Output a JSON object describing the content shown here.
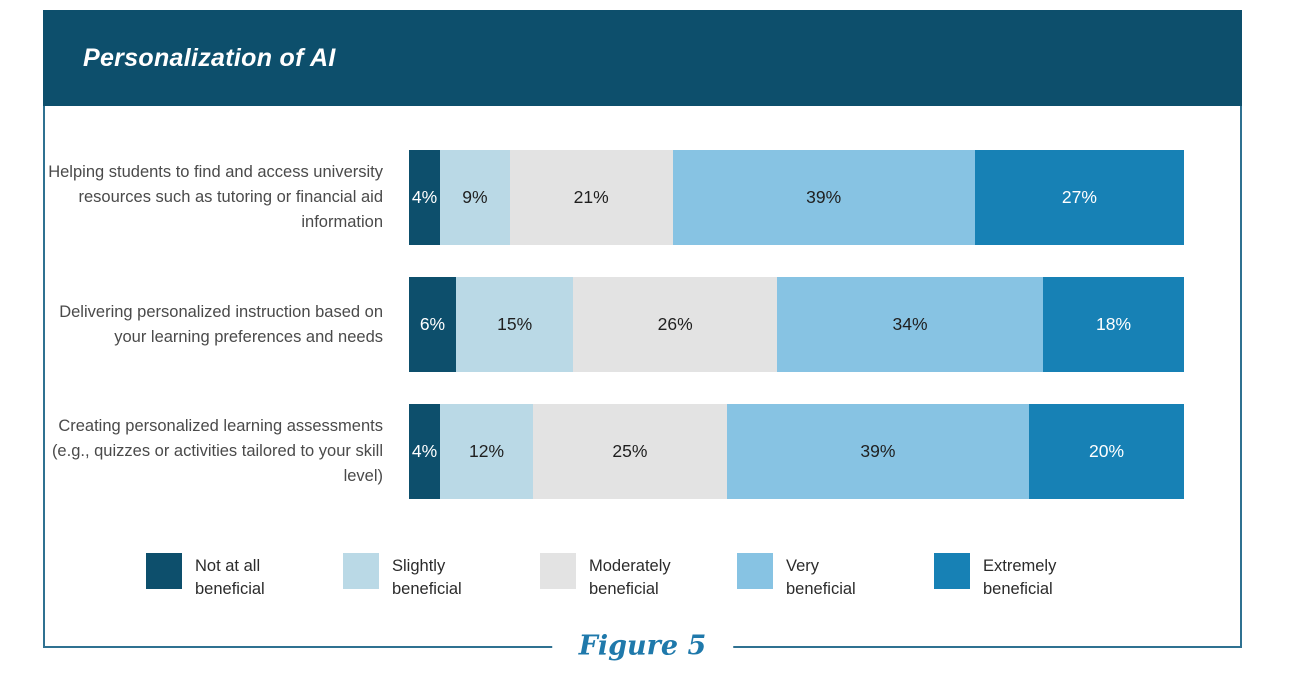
{
  "page": {
    "title": "Personalization of AI",
    "figure_caption": "Figure 5"
  },
  "colors": {
    "header_bg": "#0d4f6c",
    "box_border": "#2f7191",
    "caption_blue": "#1f79ab",
    "row_label_text": "#4a4a4a",
    "segment_dark_text": "#1f1f1f",
    "segment_light_text": "#ffffff"
  },
  "chart_data": {
    "type": "bar",
    "orientation": "horizontal",
    "stacked": true,
    "unit": "%",
    "title": "Personalization of AI",
    "legend_position": "bottom",
    "value_labels": "inside segments, formatted as N%",
    "categories": [
      "Helping students to find and access university resources such as tutoring or financial aid information",
      "Delivering personalized instruction based on your learning preferences and needs",
      "Creating personalized learning assessments (e.g., quizzes or activities tailored to your skill level)"
    ],
    "series": [
      {
        "name": "Not at all beneficial",
        "color": "#0d4f6c",
        "label_color": "#ffffff",
        "values": [
          4,
          6,
          4
        ]
      },
      {
        "name": "Slightly beneficial",
        "color": "#bad9e6",
        "label_color": "#1f1f1f",
        "values": [
          9,
          15,
          12
        ]
      },
      {
        "name": "Moderately beneficial",
        "color": "#e3e3e3",
        "label_color": "#1f1f1f",
        "values": [
          21,
          26,
          25
        ]
      },
      {
        "name": "Very beneficial",
        "color": "#87c3e3",
        "label_color": "#1f1f1f",
        "values": [
          39,
          34,
          39
        ]
      },
      {
        "name": "Extremely beneficial",
        "color": "#1781b5",
        "label_color": "#ffffff",
        "values": [
          27,
          18,
          20
        ]
      }
    ]
  }
}
